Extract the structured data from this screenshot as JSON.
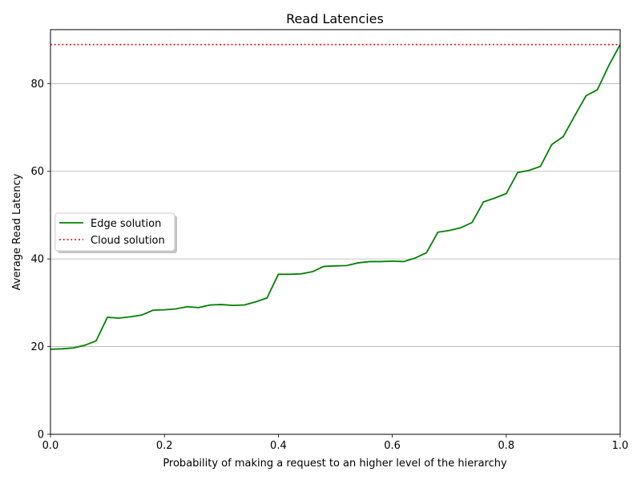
{
  "chart_data": {
    "type": "line",
    "title": "Read Latencies",
    "xlabel": "Probability of making a request to an higher level of the hierarchy",
    "ylabel": "Average Read Latency",
    "xlim": [
      0,
      1
    ],
    "ylim": [
      0,
      92.3
    ],
    "xticks": [
      0,
      0.2,
      0.4,
      0.6,
      0.8,
      1
    ],
    "xtick_labels": [
      "0.0",
      "0.2",
      "0.4",
      "0.6",
      "0.8",
      "1.0"
    ],
    "yticks": [
      0,
      20,
      40,
      60,
      80
    ],
    "ytick_labels": [
      "0",
      "20",
      "40",
      "60",
      "80"
    ],
    "grid": "y-major",
    "legend_position": "center-left",
    "series": [
      {
        "name": "Edge solution",
        "color": "#008000",
        "style": "solid",
        "x": [
          0,
          0.02,
          0.04,
          0.06,
          0.08,
          0.1,
          0.12,
          0.14,
          0.16,
          0.18,
          0.2,
          0.22,
          0.24,
          0.26,
          0.28,
          0.3,
          0.32,
          0.34,
          0.36,
          0.38,
          0.4,
          0.42,
          0.44,
          0.46,
          0.48,
          0.5,
          0.52,
          0.54,
          0.56,
          0.58,
          0.6,
          0.62,
          0.64,
          0.66,
          0.68,
          0.7,
          0.72,
          0.74,
          0.76,
          0.78,
          0.8,
          0.82,
          0.84,
          0.86,
          0.88,
          0.9,
          0.92,
          0.94,
          0.96,
          0.98,
          1.0
        ],
        "y": [
          19.4,
          19.5,
          19.7,
          20.3,
          21.3,
          26.7,
          26.5,
          26.8,
          27.2,
          28.3,
          28.4,
          28.6,
          29.1,
          28.9,
          29.5,
          29.6,
          29.4,
          29.5,
          30.2,
          31.1,
          36.5,
          36.5,
          36.6,
          37.1,
          38.3,
          38.4,
          38.5,
          39.1,
          39.4,
          39.4,
          39.5,
          39.4,
          40.2,
          41.4,
          46.1,
          46.5,
          47.1,
          48.3,
          53.0,
          53.9,
          54.9,
          59.7,
          60.2,
          61.1,
          66.1,
          67.9,
          72.6,
          77.2,
          78.6,
          84.1,
          88.9
        ]
      },
      {
        "name": "Cloud solution",
        "color": "#ff0000",
        "style": "dotted",
        "x": [
          0,
          1
        ],
        "y": [
          88.9,
          88.9
        ]
      }
    ]
  }
}
